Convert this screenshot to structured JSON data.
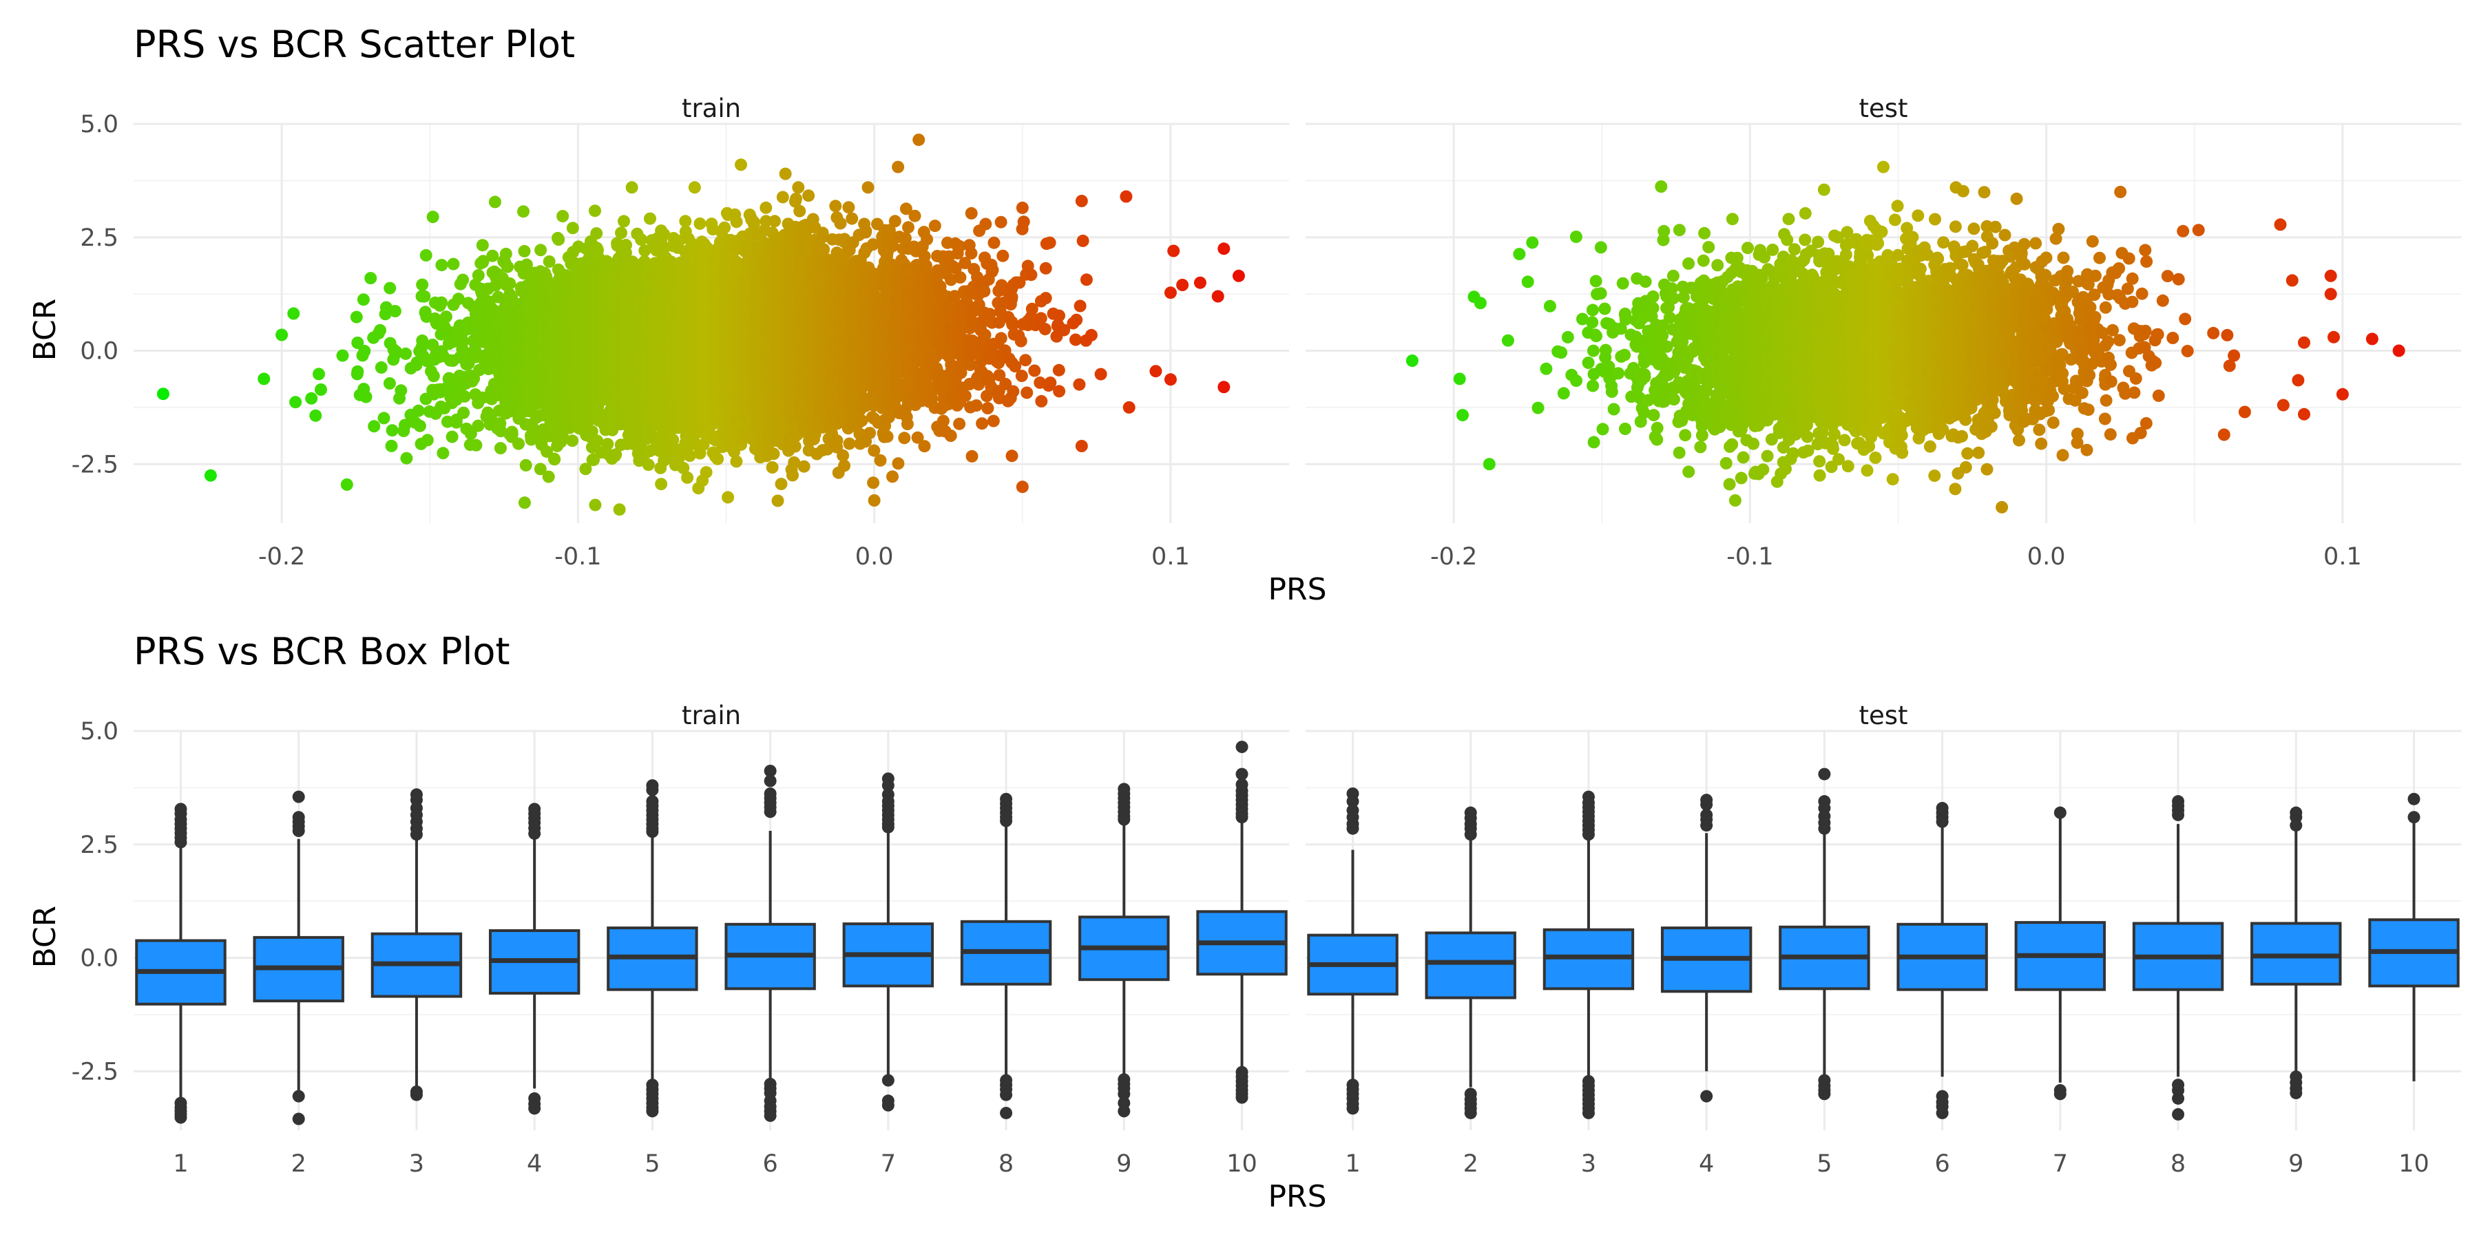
{
  "colors": {
    "low": "#00ee00",
    "mid": "#b8b800",
    "high": "#ee0000",
    "box_fill": "#1e90ff",
    "box_line": "#333333"
  },
  "chart_data": [
    {
      "type": "scatter",
      "title": "PRS vs BCR Scatter Plot",
      "xlabel": "PRS",
      "ylabel": "BCR",
      "color_by": "PRS",
      "color_gradient": [
        "#00ee00",
        "#b8b800",
        "#ee0000"
      ],
      "grid": true,
      "facets": [
        {
          "label": "train",
          "xlim": [
            -0.25,
            0.14
          ],
          "ylim": [
            -3.8,
            5.0
          ],
          "xticks": [
            -0.2,
            -0.1,
            0.0,
            0.1
          ],
          "xtick_labels": [
            "-0.2",
            "-0.1",
            "0.0",
            "0.1"
          ],
          "yticks": [
            -2.5,
            0.0,
            2.5,
            5.0
          ],
          "ytick_labels": [
            "-2.5",
            "0.0",
            "2.5",
            "5.0"
          ],
          "distribution": {
            "n": 9000,
            "x_mean": -0.052,
            "x_sd": 0.04,
            "y_intercept": 0.15,
            "y_slope": 3.0,
            "y_sd": 0.98,
            "seed": 7
          },
          "points": [
            {
              "x": -0.24,
              "y": -0.95
            },
            {
              "x": -0.224,
              "y": -2.75
            },
            {
              "x": -0.206,
              "y": -0.62
            },
            {
              "x": -0.2,
              "y": 0.35
            },
            {
              "x": -0.196,
              "y": 0.82
            },
            {
              "x": -0.19,
              "y": -1.05
            },
            {
              "x": -0.178,
              "y": -2.95
            },
            {
              "x": -0.17,
              "y": 1.6
            },
            {
              "x": -0.149,
              "y": 2.95
            },
            {
              "x": -0.128,
              "y": 3.28
            },
            {
              "x": -0.118,
              "y": -3.35
            },
            {
              "x": -0.086,
              "y": -3.5
            },
            {
              "x": -0.045,
              "y": 4.1
            },
            {
              "x": -0.03,
              "y": 3.9
            },
            {
              "x": 0.015,
              "y": 4.65
            },
            {
              "x": 0.008,
              "y": 4.05
            },
            {
              "x": 0.05,
              "y": 3.15
            },
            {
              "x": 0.07,
              "y": 3.3
            },
            {
              "x": 0.085,
              "y": 3.4
            },
            {
              "x": 0.101,
              "y": 2.2
            },
            {
              "x": 0.118,
              "y": 2.25
            },
            {
              "x": 0.123,
              "y": 1.65
            },
            {
              "x": 0.116,
              "y": 1.2
            },
            {
              "x": 0.11,
              "y": 1.5
            },
            {
              "x": 0.104,
              "y": 1.45
            },
            {
              "x": 0.118,
              "y": -0.8
            },
            {
              "x": 0.095,
              "y": -0.45
            },
            {
              "x": 0.086,
              "y": -1.25
            },
            {
              "x": 0.07,
              "y": -2.1
            },
            {
              "x": 0.05,
              "y": -3.0
            },
            {
              "x": 0.0,
              "y": -3.3
            }
          ]
        },
        {
          "label": "test",
          "xlim": [
            -0.25,
            0.14
          ],
          "ylim": [
            -3.8,
            5.0
          ],
          "xticks": [
            -0.2,
            -0.1,
            0.0,
            0.1
          ],
          "xtick_labels": [
            "-0.2",
            "-0.1",
            "0.0",
            "0.1"
          ],
          "yticks": [
            -2.5,
            0.0,
            2.5,
            5.0
          ],
          "ytick_labels": [
            "-2.5",
            "0.0",
            "2.5",
            "5.0"
          ],
          "distribution": {
            "n": 4200,
            "x_mean": -0.06,
            "x_sd": 0.037,
            "y_intercept": 0.1,
            "y_slope": 2.0,
            "y_sd": 0.98,
            "seed": 11
          },
          "points": [
            {
              "x": -0.214,
              "y": -0.22
            },
            {
              "x": -0.198,
              "y": -0.62
            },
            {
              "x": -0.197,
              "y": -1.42
            },
            {
              "x": -0.188,
              "y": -2.5
            },
            {
              "x": -0.191,
              "y": 1.05
            },
            {
              "x": -0.175,
              "y": 1.52
            },
            {
              "x": -0.13,
              "y": 3.62
            },
            {
              "x": -0.105,
              "y": -3.3
            },
            {
              "x": -0.055,
              "y": 4.05
            },
            {
              "x": -0.075,
              "y": 3.55
            },
            {
              "x": -0.01,
              "y": 3.35
            },
            {
              "x": 0.025,
              "y": 3.5
            },
            {
              "x": 0.079,
              "y": 2.78
            },
            {
              "x": 0.096,
              "y": 1.65
            },
            {
              "x": 0.096,
              "y": 1.25
            },
            {
              "x": 0.083,
              "y": 1.55
            },
            {
              "x": 0.11,
              "y": 0.26
            },
            {
              "x": 0.119,
              "y": 0.0
            },
            {
              "x": 0.097,
              "y": 0.3
            },
            {
              "x": 0.087,
              "y": 0.18
            },
            {
              "x": 0.085,
              "y": -0.65
            },
            {
              "x": 0.08,
              "y": -1.2
            },
            {
              "x": 0.087,
              "y": -1.4
            },
            {
              "x": 0.06,
              "y": -1.85
            },
            {
              "x": 0.067,
              "y": -1.35
            },
            {
              "x": -0.015,
              "y": -3.45
            }
          ]
        }
      ]
    },
    {
      "type": "box",
      "title": "PRS vs BCR Box Plot",
      "xlabel": "PRS",
      "ylabel": "BCR",
      "categories": [
        "1",
        "2",
        "3",
        "4",
        "5",
        "6",
        "7",
        "8",
        "9",
        "10"
      ],
      "grid": true,
      "facets": [
        {
          "label": "train",
          "ylim": [
            -3.8,
            5.0
          ],
          "yticks": [
            -2.5,
            0.0,
            2.5,
            5.0
          ],
          "ytick_labels": [
            "-2.5",
            "0.0",
            "2.5",
            "5.0"
          ],
          "boxes": [
            {
              "q1": -1.02,
              "median": -0.3,
              "q3": 0.38,
              "lower": -3.1,
              "upper": 2.48,
              "outliers": [
                3.28,
                3.18,
                3.05,
                2.95,
                2.85,
                2.75,
                2.65,
                2.55,
                -3.2,
                -3.3,
                -3.38,
                -3.45,
                -3.52
              ]
            },
            {
              "q1": -0.95,
              "median": -0.22,
              "q3": 0.45,
              "lower": -2.95,
              "upper": 2.62,
              "outliers": [
                3.55,
                3.1,
                3.0,
                2.9,
                2.8,
                -3.05,
                -3.55
              ]
            },
            {
              "q1": -0.85,
              "median": -0.13,
              "q3": 0.53,
              "lower": -2.88,
              "upper": 2.62,
              "outliers": [
                3.6,
                3.48,
                3.3,
                3.15,
                3.0,
                2.85,
                2.72,
                -2.95,
                -3.02
              ]
            },
            {
              "q1": -0.78,
              "median": -0.06,
              "q3": 0.6,
              "lower": -2.88,
              "upper": 2.65,
              "outliers": [
                3.28,
                3.18,
                3.08,
                2.98,
                2.86,
                2.74,
                -3.1,
                -3.22,
                -3.32
              ]
            },
            {
              "q1": -0.7,
              "median": 0.02,
              "q3": 0.66,
              "lower": -2.72,
              "upper": 2.72,
              "outliers": [
                3.8,
                3.7,
                3.45,
                3.35,
                3.25,
                3.15,
                3.05,
                2.95,
                2.85,
                2.78,
                -2.8,
                -2.9,
                -3.0,
                -3.1,
                -3.2,
                -3.3,
                -3.38
              ]
            },
            {
              "q1": -0.68,
              "median": 0.06,
              "q3": 0.74,
              "lower": -2.68,
              "upper": 2.8,
              "outliers": [
                4.12,
                3.9,
                3.62,
                3.52,
                3.42,
                3.32,
                3.22,
                -2.78,
                -2.88,
                -2.98,
                -3.15,
                -3.28,
                -3.38,
                -3.48
              ]
            },
            {
              "q1": -0.62,
              "median": 0.07,
              "q3": 0.75,
              "lower": -2.65,
              "upper": 2.8,
              "outliers": [
                3.95,
                3.8,
                3.6,
                3.45,
                3.35,
                3.25,
                3.15,
                3.05,
                2.95,
                2.88,
                -2.7,
                -3.15,
                -3.25
              ]
            },
            {
              "q1": -0.58,
              "median": 0.14,
              "q3": 0.8,
              "lower": -2.62,
              "upper": 2.95,
              "outliers": [
                3.5,
                3.4,
                3.3,
                3.2,
                3.1,
                3.02,
                -2.7,
                -2.8,
                -2.9,
                -3.02,
                -3.42
              ]
            },
            {
              "q1": -0.48,
              "median": 0.22,
              "q3": 0.9,
              "lower": -2.62,
              "upper": 3.0,
              "outliers": [
                3.72,
                3.62,
                3.52,
                3.42,
                3.32,
                3.22,
                3.12,
                3.05,
                -2.68,
                -2.78,
                -2.88,
                -3.0,
                -3.2,
                -3.38
              ]
            },
            {
              "q1": -0.36,
              "median": 0.33,
              "q3": 1.02,
              "lower": -2.42,
              "upper": 3.05,
              "outliers": [
                4.65,
                4.05,
                3.82,
                3.68,
                3.58,
                3.48,
                3.38,
                3.28,
                3.18,
                3.1,
                -2.52,
                -2.62,
                -2.72,
                -2.82,
                -2.92,
                -3.0,
                -3.08
              ]
            }
          ]
        },
        {
          "label": "test",
          "ylim": [
            -3.8,
            5.0
          ],
          "yticks": [
            -2.5,
            0.0,
            2.5,
            5.0
          ],
          "ytick_labels": [
            "-2.5",
            "0.0",
            "2.5",
            "5.0"
          ],
          "boxes": [
            {
              "q1": -0.8,
              "median": -0.15,
              "q3": 0.5,
              "lower": -2.72,
              "upper": 2.38,
              "outliers": [
                3.62,
                3.45,
                3.25,
                3.1,
                2.95,
                2.85,
                -2.8,
                -2.9,
                -3.0,
                -3.1,
                -3.22,
                -3.32
              ]
            },
            {
              "q1": -0.88,
              "median": -0.1,
              "q3": 0.55,
              "lower": -2.85,
              "upper": 2.62,
              "outliers": [
                3.2,
                3.08,
                2.95,
                2.85,
                2.72,
                -3.0,
                -3.12,
                -3.22,
                -3.32,
                -3.42
              ]
            },
            {
              "q1": -0.68,
              "median": 0.02,
              "q3": 0.62,
              "lower": -2.62,
              "upper": 2.68,
              "outliers": [
                3.55,
                3.42,
                3.32,
                3.22,
                3.12,
                3.02,
                2.92,
                2.82,
                2.72,
                -2.72,
                -2.82,
                -2.92,
                -3.02,
                -3.12,
                -3.22,
                -3.32,
                -3.42
              ]
            },
            {
              "q1": -0.74,
              "median": -0.01,
              "q3": 0.66,
              "lower": -2.5,
              "upper": 2.75,
              "outliers": [
                3.48,
                3.38,
                3.15,
                3.05,
                2.92,
                -3.05
              ]
            },
            {
              "q1": -0.68,
              "median": 0.02,
              "q3": 0.68,
              "lower": -2.62,
              "upper": 2.75,
              "outliers": [
                4.05,
                3.45,
                3.3,
                3.12,
                2.98,
                2.85,
                -2.7,
                -2.82,
                -2.92,
                -3.0
              ]
            },
            {
              "q1": -0.7,
              "median": 0.02,
              "q3": 0.74,
              "lower": -2.62,
              "upper": 2.9,
              "outliers": [
                3.3,
                3.2,
                3.1,
                3.0,
                -3.05,
                -3.18,
                -3.28,
                -3.42
              ]
            },
            {
              "q1": -0.7,
              "median": 0.05,
              "q3": 0.78,
              "lower": -2.75,
              "upper": 3.18,
              "outliers": [
                3.2,
                -2.92,
                -3.0
              ]
            },
            {
              "q1": -0.7,
              "median": 0.02,
              "q3": 0.76,
              "lower": -2.62,
              "upper": 2.95,
              "outliers": [
                3.45,
                3.35,
                3.25,
                3.15,
                -2.8,
                -2.92,
                -3.1,
                -3.45
              ]
            },
            {
              "q1": -0.58,
              "median": 0.04,
              "q3": 0.76,
              "lower": -2.55,
              "upper": 2.8,
              "outliers": [
                3.2,
                3.1,
                2.92,
                -2.62,
                -2.75,
                -2.88,
                -2.98
              ]
            },
            {
              "q1": -0.62,
              "median": 0.14,
              "q3": 0.84,
              "lower": -2.72,
              "upper": 3.02,
              "outliers": [
                3.5,
                3.1
              ]
            }
          ]
        }
      ]
    }
  ]
}
